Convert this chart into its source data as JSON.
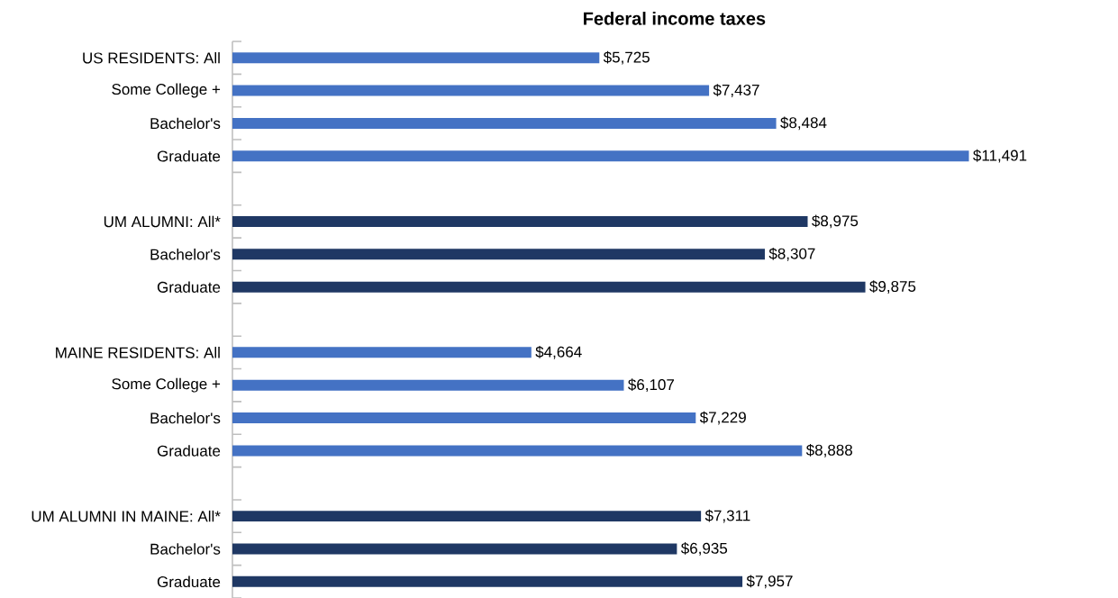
{
  "chart_data": {
    "type": "bar",
    "orientation": "horizontal",
    "title": "Federal income taxes",
    "categories": [
      "US RESIDENTS: All",
      "Some College +",
      "Bachelor's",
      "Graduate",
      null,
      "UM ALUMNI: All*",
      "Bachelor's",
      "Graduate",
      null,
      "MAINE RESIDENTS: All",
      "Some College +",
      "Bachelor's",
      "Graduate",
      null,
      "UM ALUMNI IN MAINE: All*",
      "Bachelor's",
      "Graduate"
    ],
    "values": [
      5725,
      7437,
      8484,
      11491,
      null,
      8975,
      8307,
      9875,
      null,
      4664,
      6107,
      7229,
      8888,
      null,
      7311,
      6935,
      7957
    ],
    "colors": [
      "#4472c4",
      "#4472c4",
      "#4472c4",
      "#4472c4",
      null,
      "#1f3864",
      "#1f3864",
      "#1f3864",
      null,
      "#4472c4",
      "#4472c4",
      "#4472c4",
      "#4472c4",
      null,
      "#1f3864",
      "#1f3864",
      "#1f3864"
    ],
    "value_labels": [
      "$5,725",
      "$7,437",
      "$8,484",
      "$11,491",
      null,
      "$8,975",
      "$8,307",
      "$9,875",
      null,
      "$4,664",
      "$6,107",
      "$7,229",
      "$8,888",
      null,
      "$7,311",
      "$6,935",
      "$7,957"
    ]
  }
}
